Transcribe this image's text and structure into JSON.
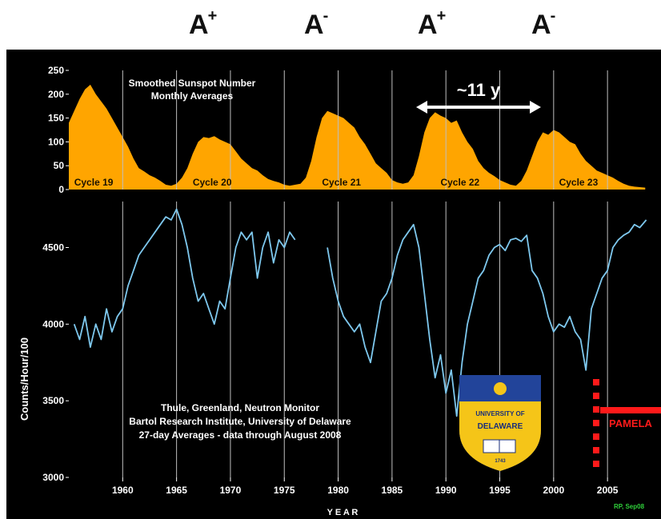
{
  "polarity_labels": [
    {
      "base": "A",
      "sign": "+"
    },
    {
      "base": "A",
      "sign": "-"
    },
    {
      "base": "A",
      "sign": "+"
    },
    {
      "base": "A",
      "sign": "-"
    }
  ],
  "cycle_arrow_label": "~11 y",
  "panel_label": "PAMELA",
  "credit": "RP, Sep08",
  "logo_text": [
    "UNIVERSITY OF",
    "DELAWARE",
    "1743"
  ],
  "colors": {
    "sunspot_fill": "#ffa500",
    "neutron_line": "#7ec8ee",
    "background": "#000000",
    "panel": "#ff1a1a",
    "crest_blue": "#22449a",
    "crest_gold": "#f5c518"
  },
  "chart_data": [
    {
      "type": "area",
      "title_lines": [
        "Smoothed Sunspot Number",
        "Monthly Averages"
      ],
      "xlim": [
        1955,
        2009
      ],
      "ylim": [
        0,
        250
      ],
      "yticks": [
        0,
        50,
        100,
        150,
        200,
        250
      ],
      "cycles": [
        {
          "label": "Cycle 19",
          "x": 1955.5
        },
        {
          "label": "Cycle 20",
          "x": 1966.5
        },
        {
          "label": "Cycle 21",
          "x": 1978.5
        },
        {
          "label": "Cycle 22",
          "x": 1989.5
        },
        {
          "label": "Cycle 23",
          "x": 2000.5
        }
      ],
      "series": [
        {
          "x": [
            1955,
            1955.5,
            1956,
            1956.5,
            1957,
            1957.5,
            1958,
            1958.5,
            1959,
            1959.5,
            1960,
            1960.5,
            1961,
            1961.5,
            1962,
            1962.5,
            1963,
            1963.5,
            1964,
            1964.5,
            1965,
            1965.5,
            1966,
            1966.5,
            1967,
            1967.5,
            1968,
            1968.5,
            1969,
            1969.5,
            1970,
            1970.5,
            1971,
            1971.5,
            1972,
            1972.5,
            1973,
            1973.5,
            1974,
            1974.5,
            1975,
            1975.5,
            1976,
            1976.5,
            1977,
            1977.5,
            1978,
            1978.5,
            1979,
            1979.5,
            1980,
            1980.5,
            1981,
            1981.5,
            1982,
            1982.5,
            1983,
            1983.5,
            1984,
            1984.5,
            1985,
            1985.5,
            1986,
            1986.5,
            1987,
            1987.5,
            1988,
            1988.5,
            1989,
            1989.5,
            1990,
            1990.5,
            1991,
            1991.5,
            1992,
            1992.5,
            1993,
            1993.5,
            1994,
            1994.5,
            1995,
            1995.5,
            1996,
            1996.5,
            1997,
            1997.5,
            1998,
            1998.5,
            1999,
            1999.5,
            2000,
            2000.5,
            2001,
            2001.5,
            2002,
            2002.5,
            2003,
            2003.5,
            2004,
            2004.5,
            2005,
            2005.5,
            2006,
            2006.5,
            2007,
            2007.5,
            2008,
            2008.5
          ],
          "y": [
            140,
            165,
            190,
            210,
            220,
            200,
            185,
            170,
            150,
            130,
            110,
            90,
            65,
            45,
            38,
            30,
            25,
            18,
            10,
            8,
            12,
            25,
            45,
            75,
            100,
            110,
            108,
            112,
            105,
            100,
            95,
            80,
            65,
            55,
            45,
            40,
            30,
            22,
            18,
            15,
            10,
            8,
            10,
            12,
            25,
            60,
            110,
            150,
            165,
            160,
            155,
            150,
            140,
            130,
            110,
            95,
            75,
            55,
            45,
            35,
            20,
            15,
            12,
            15,
            30,
            70,
            120,
            150,
            162,
            155,
            150,
            140,
            145,
            120,
            100,
            85,
            60,
            45,
            35,
            28,
            20,
            15,
            10,
            8,
            18,
            40,
            70,
            100,
            120,
            115,
            125,
            120,
            110,
            100,
            95,
            75,
            60,
            50,
            40,
            35,
            30,
            25,
            18,
            12,
            8,
            6,
            5,
            4
          ]
        }
      ]
    },
    {
      "type": "line",
      "ylabel": "Counts/Hour/100",
      "xlabel": "Y E A R",
      "xlim": [
        1955,
        2009
      ],
      "ylim": [
        3000,
        4800
      ],
      "yticks": [
        3000,
        3500,
        4000,
        4500
      ],
      "xticks": [
        1960,
        1965,
        1970,
        1975,
        1980,
        1985,
        1990,
        1995,
        2000,
        2005
      ],
      "annotation_lines": [
        "Thule, Greenland, Neutron Monitor",
        "Bartol Research Institute, University of Delaware",
        "27-day Averages - data through August 2008"
      ],
      "series": [
        {
          "x": [
            1955.5,
            1956,
            1956.5,
            1957,
            1957.5,
            1958,
            1958.5,
            1959,
            1959.5,
            1960,
            1960.5,
            1961,
            1961.5,
            1962,
            1962.5,
            1963,
            1963.5,
            1964,
            1964.5,
            1965,
            1965.5,
            1966,
            1966.5,
            1967,
            1967.5,
            1968,
            1968.5,
            1969,
            1969.5,
            1970,
            1970.5,
            1971,
            1971.5,
            1972,
            1972.5,
            1973,
            1973.5,
            1974,
            1974.5,
            1975,
            1975.5,
            1976
          ],
          "y": [
            4000,
            3900,
            4050,
            3850,
            4000,
            3900,
            4100,
            3950,
            4050,
            4100,
            4250,
            4350,
            4450,
            4500,
            4550,
            4600,
            4650,
            4700,
            4680,
            4750,
            4650,
            4500,
            4300,
            4150,
            4200,
            4100,
            4000,
            4150,
            4100,
            4300,
            4500,
            4600,
            4550,
            4600,
            4300,
            4500,
            4600,
            4400,
            4550,
            4500,
            4600,
            4550
          ]
        },
        {
          "x": [
            1979,
            1979.5,
            1980,
            1980.5,
            1981,
            1981.5,
            1982,
            1982.5,
            1983,
            1983.5,
            1984,
            1984.5,
            1985,
            1985.5,
            1986,
            1986.5,
            1987,
            1987.5,
            1988,
            1988.5,
            1989,
            1989.5,
            1990,
            1990.5,
            1991,
            1991.5,
            1992,
            1992.5,
            1993,
            1993.5,
            1994,
            1994.5,
            1995,
            1995.5,
            1996,
            1996.5,
            1997,
            1997.5,
            1998,
            1998.5,
            1999,
            1999.5,
            2000,
            2000.5,
            2001,
            2001.5,
            2002,
            2002.5,
            2003,
            2003.5,
            2004,
            2004.5,
            2005,
            2005.5,
            2006,
            2006.5,
            2007,
            2007.5,
            2008,
            2008.6
          ],
          "y": [
            4500,
            4300,
            4150,
            4050,
            4000,
            3950,
            4000,
            3850,
            3750,
            3950,
            4150,
            4200,
            4300,
            4450,
            4550,
            4600,
            4650,
            4500,
            4200,
            3900,
            3650,
            3800,
            3550,
            3700,
            3400,
            3750,
            4000,
            4150,
            4300,
            4350,
            4450,
            4500,
            4520,
            4480,
            4550,
            4560,
            4540,
            4580,
            4350,
            4300,
            4200,
            4050,
            3950,
            4000,
            3980,
            4050,
            3950,
            3900,
            3700,
            4100,
            4200,
            4300,
            4350,
            4500,
            4550,
            4580,
            4600,
            4650,
            4630,
            4680
          ]
        }
      ]
    }
  ]
}
